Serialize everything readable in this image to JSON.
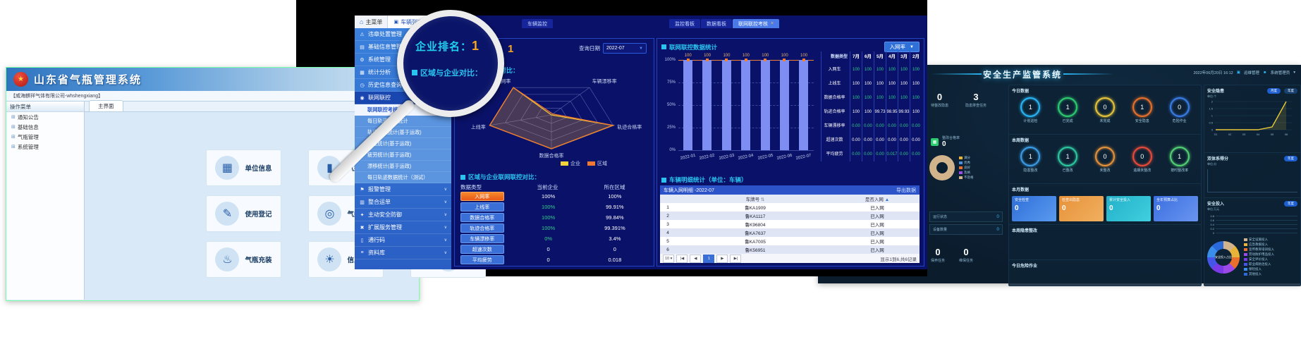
{
  "left_app": {
    "title": "山东省气瓶管理系统",
    "company": "【威海麒祥气体有限公司-whshengxiang】",
    "sidebar": {
      "header": "操作菜单",
      "items": [
        "通知公告",
        "基础信息",
        "气瓶管理",
        "系统管理"
      ]
    },
    "tab": "主界面",
    "tiles": [
      {
        "label": "单位信息",
        "icon": "building-icon",
        "glyph": "▦"
      },
      {
        "label": "气瓶管理",
        "icon": "cylinder-icon",
        "glyph": "▮"
      },
      {
        "label": "",
        "icon": "users-icon",
        "glyph": "☻"
      },
      {
        "label": "使用登记",
        "icon": "register-icon",
        "glyph": "✎"
      },
      {
        "label": "气瓶报检",
        "icon": "inspect-icon",
        "glyph": "◎"
      },
      {
        "label": "",
        "icon": "wrench-icon",
        "glyph": "⚒"
      },
      {
        "label": "气瓶充装",
        "icon": "filling-icon",
        "glyph": "♨"
      },
      {
        "label": "信息预警",
        "icon": "alert-icon",
        "glyph": "☀"
      },
      {
        "label": "",
        "icon": "chart-icon",
        "glyph": "▂▅▇"
      }
    ]
  },
  "center_app": {
    "topbar": {
      "home": "主菜单",
      "vehicle_tab": "车辆列表",
      "collapse": "«"
    },
    "lone_tab": "车辆监控",
    "page_tabs": [
      {
        "label": "监控看板"
      },
      {
        "label": "数据看板"
      },
      {
        "label": "联网联控考核",
        "active": true,
        "close": "×"
      }
    ],
    "menu": [
      {
        "label": "违章处置管理",
        "glyph": "⚠",
        "icon": "violation-icon",
        "chevron": true
      },
      {
        "label": "基础信息管理",
        "glyph": "▤",
        "icon": "info-icon",
        "chevron": true
      },
      {
        "label": "系统管理",
        "glyph": "⚙",
        "icon": "gear-icon",
        "chevron": true
      },
      {
        "label": "统计分析",
        "glyph": "▦",
        "icon": "stats-icon",
        "chevron": true
      },
      {
        "label": "历史信息查询",
        "glyph": "◷",
        "icon": "history-icon",
        "chevron": true
      },
      {
        "label": "联网联控",
        "glyph": "◉",
        "icon": "network-icon",
        "expanded": true
      }
    ],
    "submenu": [
      {
        "label": "联网联控考核",
        "active": true
      },
      {
        "label": "每日轨迹数据统计"
      },
      {
        "label": "轨迹数据统计(基于运政)"
      },
      {
        "label": "超速统计(基于运政)"
      },
      {
        "label": "疲劳统计(基于运政)"
      },
      {
        "label": "漂移统计(基于运政)"
      },
      {
        "label": "每日轨迹数据统计（测试）"
      }
    ],
    "menu2": [
      {
        "label": "报警管理",
        "glyph": "⚑",
        "icon": "alarm-icon",
        "chevron": true
      },
      {
        "label": "整合运单",
        "glyph": "▥",
        "icon": "waybill-icon",
        "chevron": true
      },
      {
        "label": "主动安全防御",
        "glyph": "✦",
        "icon": "shield-icon",
        "chevron": true
      },
      {
        "label": "扩展服务管理",
        "glyph": "✖",
        "icon": "expand-icon",
        "chevron": true
      },
      {
        "label": "通行码",
        "glyph": "▯",
        "icon": "pass-icon",
        "chevron": true
      },
      {
        "label": "资料库",
        "glyph": "≡",
        "icon": "library-icon",
        "chevron": true
      }
    ],
    "rank_label": "企业排名：",
    "rank_value": "1",
    "query_label": "查询日期",
    "query_value": "2022-07",
    "compare_title": "区域与企业对比：",
    "stats_title": "区域与企业联网联控对比：",
    "stats_table": {
      "headers": [
        "数据类型",
        "当前企业",
        "所在区域"
      ],
      "rows": [
        {
          "type": "入网率",
          "company": "100%",
          "region": "100%",
          "accent": true,
          "company_green": false
        },
        {
          "type": "上线率",
          "company": "100%",
          "region": "99.91%",
          "company_green": true
        },
        {
          "type": "数据合格率",
          "company": "100%",
          "region": "99.84%",
          "company_green": true
        },
        {
          "type": "轨迹合格率",
          "company": "100%",
          "region": "99.391%",
          "company_green": true
        },
        {
          "type": "车辆漂移率",
          "company": "0%",
          "region": "3.4%",
          "company_green": true
        },
        {
          "type": "超速次数",
          "company": "0",
          "region": "0",
          "company_green": false
        },
        {
          "type": "平均疲劳",
          "company": "0",
          "region": "0.018",
          "company_green": false
        }
      ]
    },
    "chart_title": "联网联控数据统计",
    "metric": "入网率",
    "month_table": {
      "headers": [
        "数据类型",
        "7月",
        "6月",
        "5月",
        "4月",
        "3月",
        "2月"
      ],
      "rows": [
        {
          "label": "入网车",
          "values": [
            "100",
            "100",
            "100",
            "100",
            "100",
            "100"
          ],
          "green": true
        },
        {
          "label": "上线车",
          "values": [
            "100",
            "100",
            "100",
            "100",
            "100",
            "100"
          ],
          "green": false
        },
        {
          "label": "数据合格率",
          "values": [
            "100",
            "100",
            "100",
            "100",
            "100",
            "100"
          ],
          "green": true
        },
        {
          "label": "轨迹合格率",
          "values": [
            "100",
            "100",
            "99.73",
            "98.95",
            "99.93",
            "100"
          ],
          "green": false
        },
        {
          "label": "车辆漂移率",
          "values": [
            "0.00",
            "0.00",
            "0.00",
            "0.00",
            "0.00",
            "0.00"
          ],
          "green": true
        },
        {
          "label": "超速次数",
          "values": [
            "0.00",
            "0.00",
            "0.00",
            "0.00",
            "0.00",
            "0.00"
          ],
          "green": false
        },
        {
          "label": "平均疲劳",
          "values": [
            "0.00",
            "0.00",
            "0.00",
            "0.017",
            "0.00",
            "0.00"
          ],
          "green": true
        }
      ]
    },
    "detail_title": "车辆明细统计（单位：车辆）",
    "vehicle_table": {
      "title": "车辆入网明细 -2022-07",
      "export": "导出数据",
      "col_plate": "车牌号",
      "col_status": "是否入网",
      "rows": [
        {
          "plate": "鲁KA1909",
          "status": "已入网"
        },
        {
          "plate": "鲁KA1117",
          "status": "已入网"
        },
        {
          "plate": "鲁K96804",
          "status": "已入网"
        },
        {
          "plate": "鲁KA7637",
          "status": "已入网"
        },
        {
          "plate": "鲁KA7005",
          "status": "已入网"
        },
        {
          "plate": "鲁K56951",
          "status": "已入网"
        }
      ],
      "page_size": "10",
      "page": "1",
      "info": "显示1到6,共6记录"
    }
  },
  "right_app": {
    "title": "安全生产监管系统",
    "datetime": "2022年06月20日 16:12",
    "role": "运维管理",
    "user": "系统管理员",
    "left": {
      "stats": [
        {
          "value": "0",
          "label": "待整改隐患"
        },
        {
          "value": "3",
          "label": "隐患排查任务"
        }
      ],
      "rate": {
        "label": "整改合格率",
        "value": "0"
      },
      "donut_legend": [
        {
          "label": "满分",
          "color": "#e8b339"
        },
        {
          "label": "优秀",
          "color": "#4a90d9"
        },
        {
          "label": "良好",
          "color": "#e8702a"
        },
        {
          "label": "及格",
          "color": "#9b4ae8"
        },
        {
          "label": "不及格",
          "color": "#d2b48c"
        }
      ],
      "device_rows": [
        {
          "label": "运行状态",
          "value": "0"
        },
        {
          "label": "设备数量",
          "value": "0"
        }
      ],
      "bottom_stats": [
        {
          "value": "0",
          "label": "保养任务"
        },
        {
          "value": "0",
          "label": "维保任务"
        }
      ]
    },
    "today": {
      "title": "今日数据",
      "gauges": [
        {
          "label": "计划巡检",
          "value": "1",
          "color": "#29b6f6"
        },
        {
          "label": "已完成",
          "value": "1",
          "color": "#2ecc71"
        },
        {
          "label": "未完成",
          "value": "0",
          "color": "#e8c63a"
        },
        {
          "label": "安全隐患",
          "value": "1",
          "color": "#e8702a"
        },
        {
          "label": "危险作业",
          "value": "0",
          "color": "#3a7de8"
        }
      ]
    },
    "week": {
      "title": "本周数据",
      "gauges": [
        {
          "label": "隐患整改",
          "value": "1",
          "color": "#3a9de8"
        },
        {
          "label": "已整改",
          "value": "1",
          "color": "#2ec8a0"
        },
        {
          "label": "未整改",
          "value": "0",
          "color": "#e8923a"
        },
        {
          "label": "逾期未整改",
          "value": "0",
          "color": "#e84a3a"
        },
        {
          "label": "按时整改率",
          "value": "1",
          "color": "#52d273"
        }
      ]
    },
    "month": {
      "title": "本月数据",
      "cards": [
        {
          "label": "安全检查",
          "value": "0",
          "c1": "#2f6fd8",
          "c2": "#5a9af0"
        },
        {
          "label": "检查出隐患",
          "value": "0",
          "c1": "#e8923a",
          "c2": "#f0b060"
        },
        {
          "label": "累计安全投入",
          "value": "0",
          "c1": "#22b0c8",
          "c2": "#40d0e0"
        },
        {
          "label": "全年预算占比",
          "value": "0",
          "c1": "#3b6fe0",
          "c2": "#6a95f0"
        }
      ]
    },
    "week_fix_title": "本周隐患整改",
    "danger_title": "今日危险作业",
    "hazard": {
      "title": "安全隐患",
      "unit": "单位:个",
      "btn_month": "月度",
      "btn_year": "年度"
    },
    "score": {
      "title": "双体系得分",
      "unit": "单位:分",
      "btn_year": "年度"
    },
    "invest": {
      "title": "安全投入",
      "unit": "单位:万元",
      "btn_year": "年度",
      "center": "安全投入占比",
      "legend": [
        {
          "label": "安全设施投入",
          "color": "#d2b48c"
        },
        {
          "label": "应急救援投入",
          "color": "#e8b339"
        },
        {
          "label": "宣传教育培训投入",
          "color": "#e8702a"
        },
        {
          "label": "劳动防护用品投入",
          "color": "#9b4ae8"
        },
        {
          "label": "安全评价投入",
          "color": "#7a3ae8"
        },
        {
          "label": "职业病防治投入",
          "color": "#4455e8"
        },
        {
          "label": "保险投入",
          "color": "#3a8de8"
        },
        {
          "label": "其他投入",
          "color": "#2a6ad8"
        }
      ]
    }
  },
  "chart_data": [
    {
      "type": "bar",
      "title": "联网联控数据统计",
      "metric": "入网率",
      "categories": [
        "2022-01",
        "2022-02",
        "2022-03",
        "2022-04",
        "2022-05",
        "2022-06",
        "2022-07"
      ],
      "values": [
        100,
        100,
        100,
        100,
        100,
        100,
        100
      ],
      "ylabels": [
        "100%",
        "75%",
        "50%",
        "25%",
        "0%"
      ],
      "ylim": [
        0,
        100
      ],
      "bar_color": "#7d8df2",
      "line_color": "#f08030",
      "grid": "dashed"
    },
    {
      "type": "radar",
      "title": "区域与企业对比",
      "axes": [
        "入网率",
        "车辆漂移率",
        "轨迹合格率",
        "数据合格率",
        "上线率"
      ],
      "series": [
        {
          "name": "企业",
          "color": "#f0d43a",
          "values": [
            100,
            0,
            100,
            100,
            100
          ]
        },
        {
          "name": "区域",
          "color": "#f07830",
          "values": [
            100,
            3.4,
            99.391,
            99.84,
            99.91
          ]
        }
      ],
      "legend_position": "bottom-right"
    },
    {
      "type": "line",
      "title": "安全隐患",
      "x": [
        "01",
        "02",
        "03",
        "04",
        "05",
        "06"
      ],
      "values": [
        0,
        0,
        0,
        0,
        0.2,
        2
      ],
      "ylabels": [
        "2",
        "1.5",
        "1",
        "0.5",
        "0"
      ],
      "ylim": [
        0,
        2
      ],
      "color": "#e8c83a"
    }
  ]
}
